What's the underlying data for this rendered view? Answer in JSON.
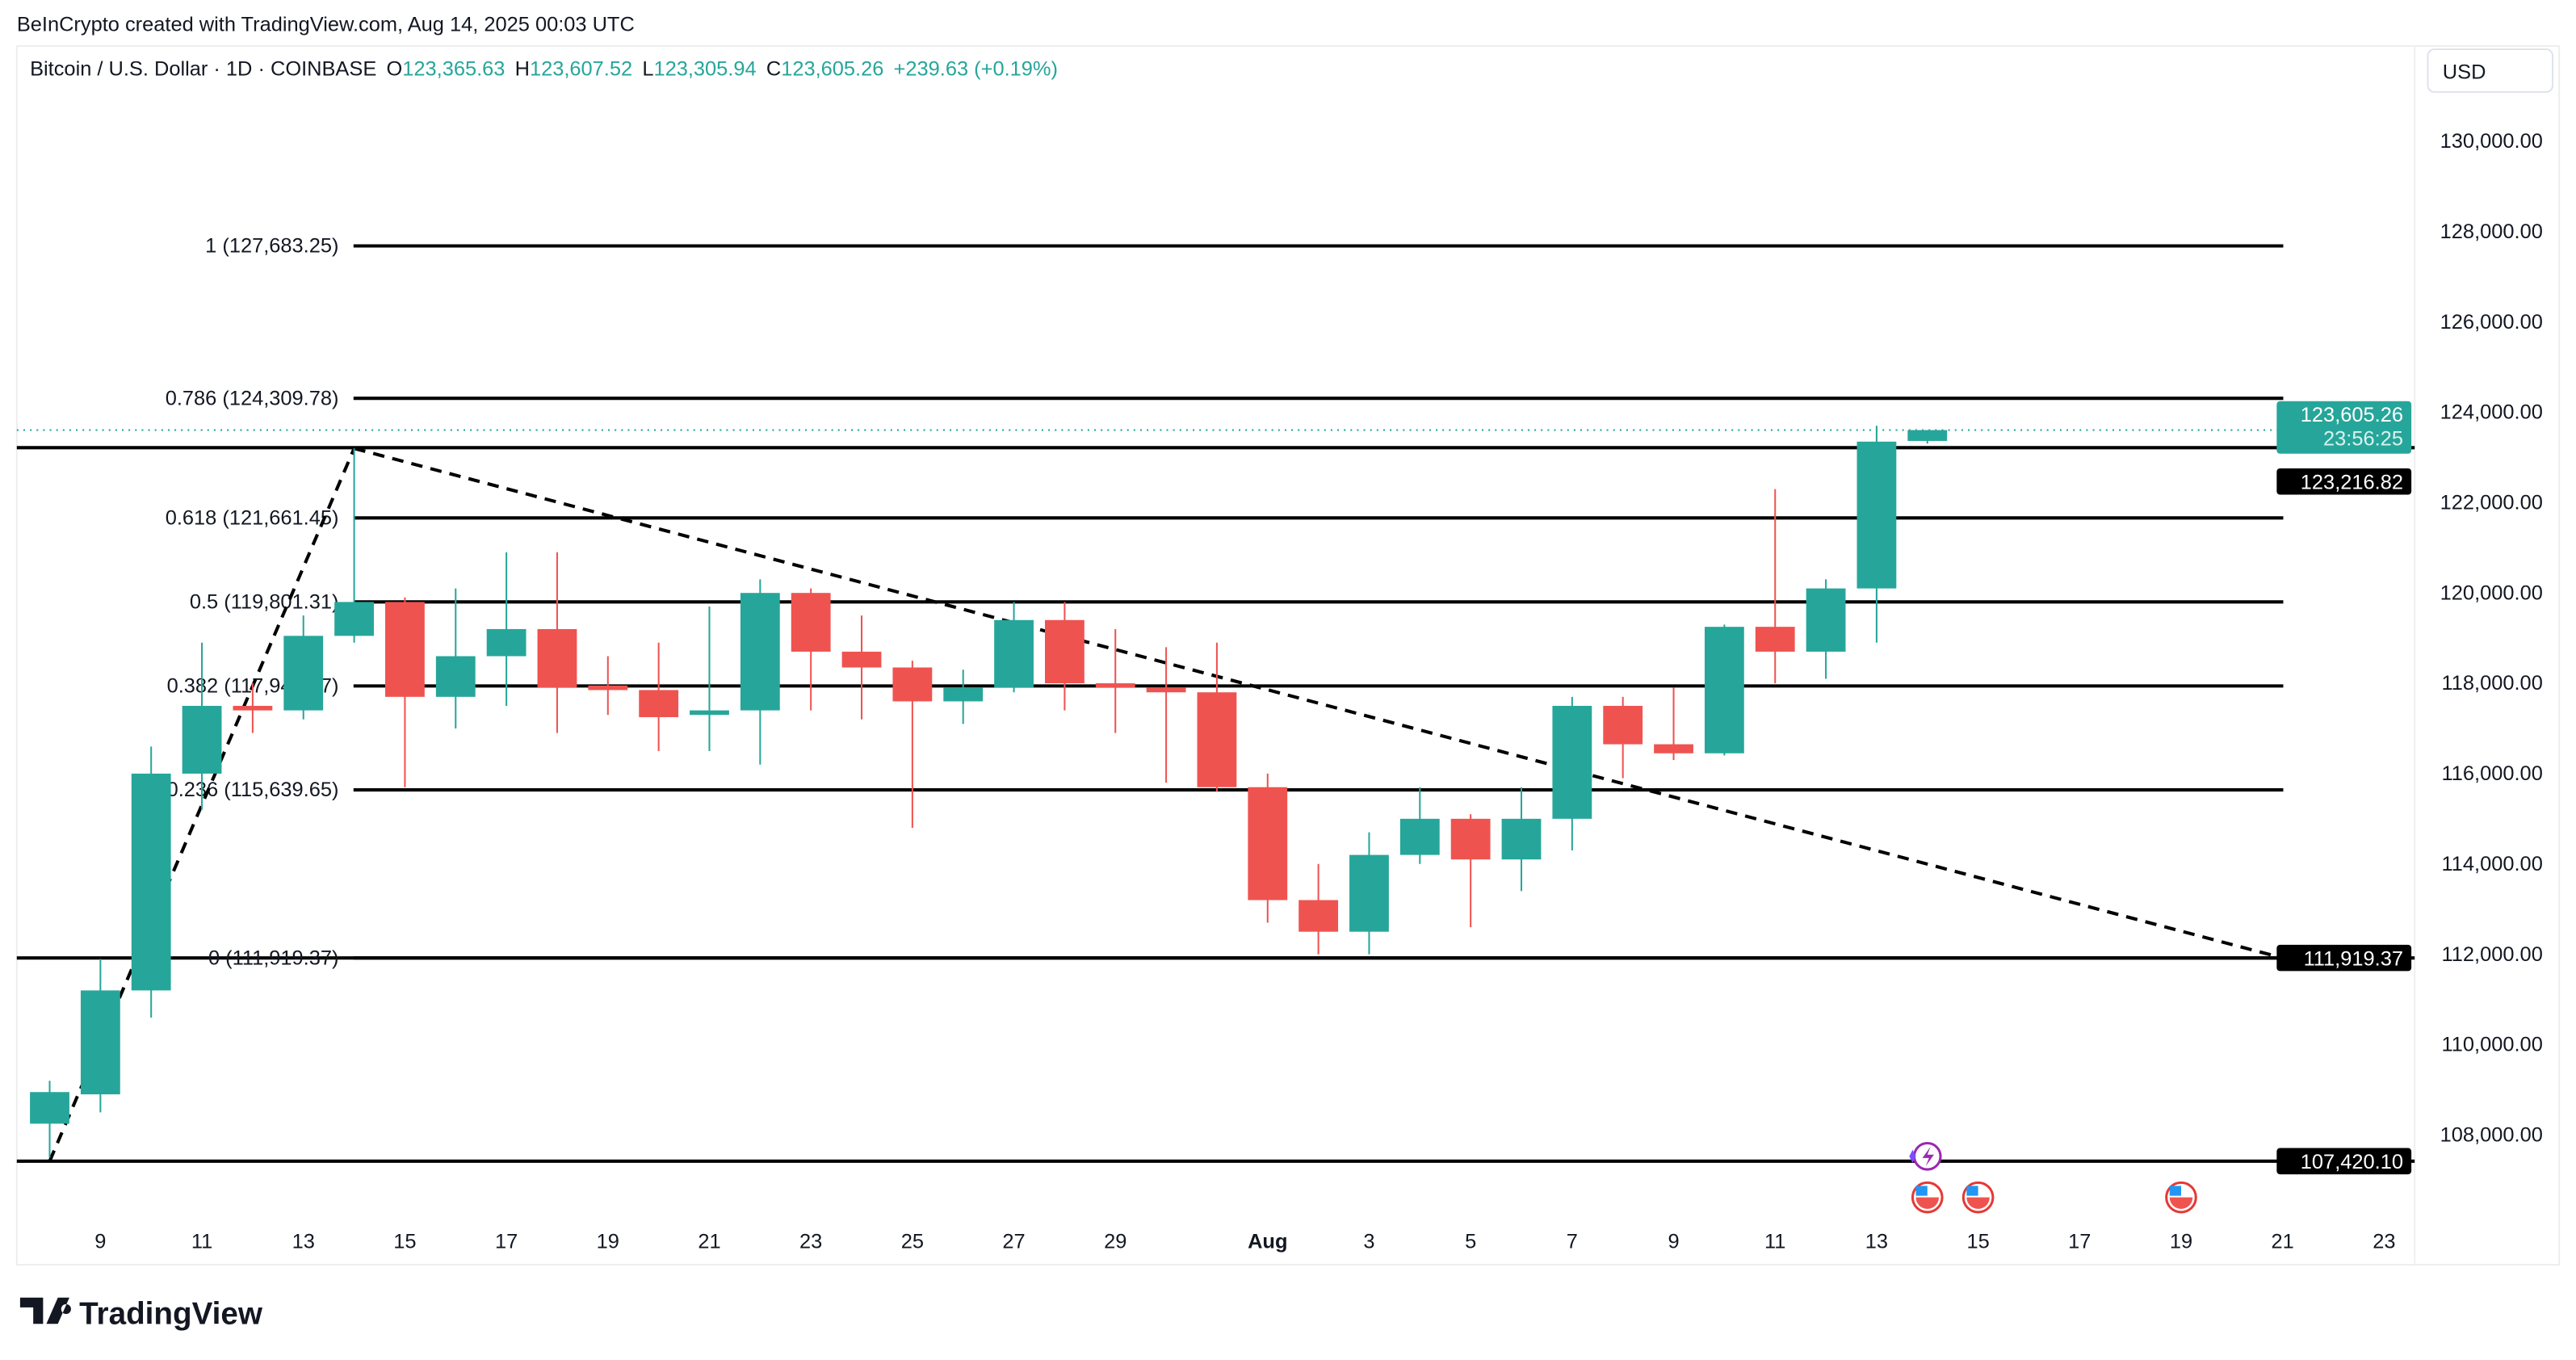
{
  "attribution": "BeInCrypto created with TradingView.com, Aug 14, 2025 00:03 UTC",
  "legend": {
    "symbol": "Bitcoin / U.S. Dollar · 1D · COINBASE",
    "o_label": "O",
    "o": "123,365.63",
    "h_label": "H",
    "h": "123,607.52",
    "l_label": "L",
    "l": "123,305.94",
    "c_label": "C",
    "c": "123,605.26",
    "change": "+239.63 (+0.19%)"
  },
  "currency": "USD",
  "logo": "TradingView",
  "colors": {
    "up": "#26a69a",
    "down": "#ef5350",
    "line": "#000000",
    "event_purple": "#9c27b0",
    "flag_red": "#e53935"
  },
  "price_tags": {
    "last": "123,605.26",
    "countdown": "23:56:25",
    "level_1": "123,216.82",
    "level_2": "111,919.37",
    "level_3": "107,420.10"
  },
  "chart_data": {
    "type": "candlestick",
    "title": "",
    "ylim": [
      106000,
      132000
    ],
    "y_ticks": [
      "108,000.00",
      "110,000.00",
      "112,000.00",
      "114,000.00",
      "116,000.00",
      "118,000.00",
      "120,000.00",
      "122,000.00",
      "124,000.00",
      "126,000.00",
      "128,000.00",
      "130,000.00"
    ],
    "y_tick_values": [
      108000,
      110000,
      112000,
      114000,
      116000,
      118000,
      120000,
      122000,
      124000,
      126000,
      128000,
      130000
    ],
    "x_tick_labels": [
      "9",
      "11",
      "13",
      "15",
      "17",
      "19",
      "21",
      "23",
      "25",
      "27",
      "29",
      "Aug",
      "3",
      "5",
      "7",
      "9",
      "11",
      "13",
      "15",
      "17",
      "19",
      "21",
      "23"
    ],
    "x_tick_dates": [
      "2025-07-09",
      "2025-07-11",
      "2025-07-13",
      "2025-07-15",
      "2025-07-17",
      "2025-07-19",
      "2025-07-21",
      "2025-07-23",
      "2025-07-25",
      "2025-07-27",
      "2025-07-29",
      "2025-08-01",
      "2025-08-03",
      "2025-08-05",
      "2025-08-07",
      "2025-08-09",
      "2025-08-11",
      "2025-08-13",
      "2025-08-15",
      "2025-08-17",
      "2025-08-19",
      "2025-08-21",
      "2025-08-23"
    ],
    "first_date": "2025-07-08",
    "candles": [
      [
        108250,
        109200,
        107500,
        108950
      ],
      [
        108900,
        111900,
        108500,
        111200
      ],
      [
        111200,
        116600,
        110600,
        116000
      ],
      [
        116000,
        118900,
        115200,
        117500
      ],
      [
        117500,
        118000,
        116900,
        117400
      ],
      [
        117400,
        119500,
        117200,
        119050
      ],
      [
        119050,
        123200,
        118900,
        119800
      ],
      [
        119800,
        119900,
        115700,
        117700
      ],
      [
        117700,
        120100,
        117000,
        118600
      ],
      [
        118600,
        120900,
        117500,
        119200
      ],
      [
        119200,
        120900,
        116900,
        117900
      ],
      [
        117950,
        118600,
        117300,
        117850
      ],
      [
        117850,
        118900,
        116500,
        117250
      ],
      [
        117300,
        119700,
        116500,
        117400
      ],
      [
        117400,
        120300,
        116200,
        120000
      ],
      [
        120000,
        120100,
        117400,
        118700
      ],
      [
        118700,
        119500,
        117200,
        118350
      ],
      [
        118350,
        118500,
        114800,
        117600
      ],
      [
        117600,
        118300,
        117100,
        117900
      ],
      [
        117900,
        119800,
        117800,
        119400
      ],
      [
        119400,
        119800,
        117400,
        118000
      ],
      [
        118000,
        119200,
        116900,
        117900
      ],
      [
        117900,
        118800,
        115800,
        117800
      ],
      [
        117800,
        118900,
        115600,
        115700
      ],
      [
        115700,
        116000,
        112700,
        113200
      ],
      [
        113200,
        114000,
        112000,
        112500
      ],
      [
        112500,
        114700,
        112000,
        114200
      ],
      [
        114200,
        115700,
        114000,
        115000
      ],
      [
        115000,
        115100,
        112600,
        114100
      ],
      [
        114100,
        115700,
        113400,
        115000
      ],
      [
        115000,
        117700,
        114300,
        117500
      ],
      [
        117500,
        117700,
        115900,
        116650
      ],
      [
        116650,
        117900,
        116300,
        116450
      ],
      [
        116450,
        119300,
        116400,
        119250
      ],
      [
        119250,
        122300,
        118000,
        118700
      ],
      [
        118700,
        120300,
        118100,
        120100
      ],
      [
        120100,
        123700,
        118900,
        123350
      ],
      [
        123365.63,
        123607.52,
        123305.94,
        123605.26
      ]
    ],
    "fib_levels": [
      {
        "ratio": "1",
        "price": 127683.25,
        "label": "1 (127,683.25)"
      },
      {
        "ratio": "0.786",
        "price": 124309.78,
        "label": "0.786 (124,309.78)"
      },
      {
        "ratio": "0.618",
        "price": 121661.45,
        "label": "0.618 (121,661.45)"
      },
      {
        "ratio": "0.5",
        "price": 119801.31,
        "label": "0.5 (119,801.31)"
      },
      {
        "ratio": "0.382",
        "price": 117941.17,
        "label": "0.382 (117,941.17)"
      },
      {
        "ratio": "0.236",
        "price": 115639.65,
        "label": "0.236 (115,639.65)"
      },
      {
        "ratio": "0",
        "price": 111919.37,
        "label": "0 (111,919.37)"
      }
    ],
    "horizontal_lines": [
      123216.82,
      111919.37,
      107420.1
    ],
    "trendlines": [
      {
        "from": [
          "2025-07-08",
          107420
        ],
        "to": [
          "2025-07-14",
          123200
        ]
      },
      {
        "from": [
          "2025-07-14",
          123200
        ],
        "to": [
          "2025-08-21",
          111919.37
        ]
      }
    ],
    "events": [
      {
        "date": "2025-08-14",
        "icon": "lightning-event-icon"
      },
      {
        "date": "2025-08-14",
        "icon": "us-flag-icon"
      },
      {
        "date": "2025-08-15",
        "icon": "us-flag-icon"
      },
      {
        "date": "2025-08-19",
        "icon": "us-flag-icon"
      }
    ]
  }
}
